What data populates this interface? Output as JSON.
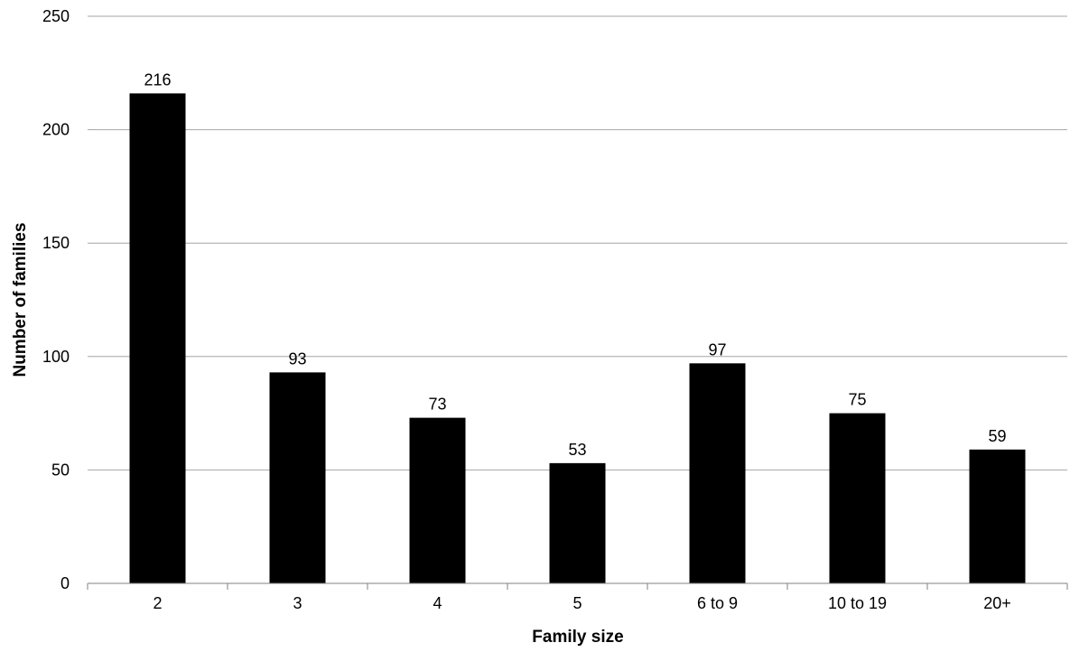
{
  "chart_data": {
    "type": "bar",
    "title": "",
    "xlabel": "Family size",
    "ylabel": "Number of families",
    "categories": [
      "2",
      "3",
      "4",
      "5",
      "6 to 9",
      "10 to 19",
      "20+"
    ],
    "values": [
      216,
      93,
      73,
      53,
      97,
      75,
      59
    ],
    "data_labels": [
      "216",
      "93",
      "73",
      "53",
      "97",
      "75",
      "59"
    ],
    "ylim": [
      0,
      250
    ],
    "yticks": [
      "0",
      "50",
      "100",
      "150",
      "200",
      "250"
    ],
    "ytick_values": [
      0,
      50,
      100,
      150,
      200,
      250
    ],
    "grid": true,
    "legend": "none",
    "colors": {
      "bar": "#000000",
      "grid": "#a6a6a6",
      "axis": "#808080"
    }
  }
}
